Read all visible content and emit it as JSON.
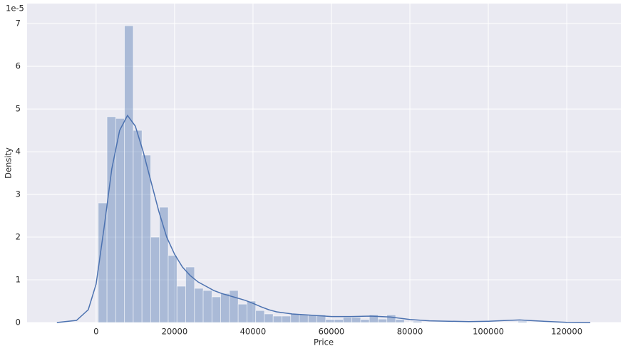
{
  "chart_data": {
    "type": "histogram",
    "xlabel": "Price",
    "ylabel": "Density",
    "y_offset_label": "1e-5",
    "bins": [
      545,
      2775,
      5005,
      7235,
      9465,
      11695,
      13925,
      16155,
      18385,
      20615,
      22845,
      25075,
      27305,
      29535,
      31765,
      33995,
      36225,
      38455,
      40685,
      42915,
      45145,
      47375,
      49605,
      51835,
      54065,
      56295,
      58525,
      60755,
      62985,
      65215,
      67445,
      69675,
      71905,
      74135,
      76365,
      78595,
      80825,
      83055,
      85285,
      87515,
      89745,
      91975,
      94205,
      96435,
      98665,
      100895,
      103125,
      105355,
      107585,
      109815,
      112045,
      114275,
      116505,
      118735,
      120965,
      123195
    ],
    "counts": [
      2.8,
      4.82,
      4.78,
      6.95,
      4.5,
      3.92,
      2.0,
      2.7,
      1.57,
      0.85,
      1.3,
      0.8,
      0.75,
      0.6,
      0.68,
      0.75,
      0.43,
      0.5,
      0.28,
      0.2,
      0.15,
      0.15,
      0.2,
      0.18,
      0.18,
      0.18,
      0.07,
      0.07,
      0.12,
      0.12,
      0.07,
      0.18,
      0.08,
      0.18,
      0.07,
      0,
      0.03,
      0,
      0,
      0,
      0,
      0,
      0,
      0,
      0,
      0,
      0,
      0,
      0.03,
      0,
      0,
      0,
      0,
      0,
      0
    ],
    "color": "#4c72b0",
    "bar_opacity": 0.4,
    "kde": {
      "color": "#4c72b0",
      "x": [
        -10000,
        -5000,
        -2000,
        0,
        2000,
        4000,
        6000,
        8000,
        10000,
        12000,
        14000,
        16000,
        18000,
        20000,
        22000,
        24000,
        26000,
        28000,
        30000,
        32000,
        35000,
        38000,
        40000,
        42000,
        44000,
        46000,
        50000,
        55000,
        60000,
        65000,
        70000,
        75000,
        80000,
        85000,
        90000,
        95000,
        100000,
        105000,
        108000,
        112000,
        116000,
        120000,
        126000
      ],
      "y": [
        0,
        0.05,
        0.3,
        0.9,
        2.2,
        3.6,
        4.5,
        4.85,
        4.6,
        4.0,
        3.3,
        2.6,
        2.0,
        1.6,
        1.3,
        1.1,
        0.95,
        0.85,
        0.75,
        0.68,
        0.6,
        0.52,
        0.45,
        0.37,
        0.3,
        0.25,
        0.2,
        0.17,
        0.14,
        0.14,
        0.15,
        0.13,
        0.07,
        0.04,
        0.03,
        0.02,
        0.03,
        0.05,
        0.06,
        0.04,
        0.02,
        0.005,
        0
      ]
    },
    "xlim": [
      -17600,
      133800
    ],
    "ylim": [
      0,
      7.47
    ],
    "xticks": [
      0,
      20000,
      40000,
      60000,
      80000,
      100000,
      120000
    ],
    "yticks": [
      0,
      1,
      2,
      3,
      4,
      5,
      6,
      7
    ],
    "grid": true
  }
}
